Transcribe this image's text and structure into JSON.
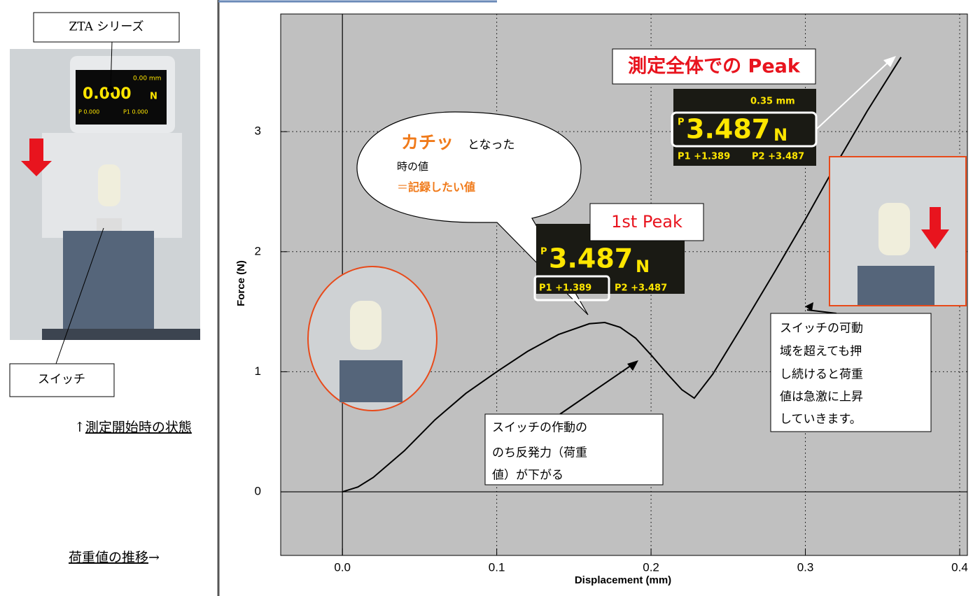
{
  "chart_data": {
    "type": "line",
    "xlabel": "Displacement (mm)",
    "ylabel": "Force (N)",
    "x": [
      0,
      0.01,
      0.02,
      0.04,
      0.06,
      0.08,
      0.1,
      0.12,
      0.14,
      0.16,
      0.17,
      0.18,
      0.19,
      0.2,
      0.21,
      0.22,
      0.228,
      0.24,
      0.26,
      0.28,
      0.3,
      0.32,
      0.34,
      0.362
    ],
    "series": [
      {
        "color": "#000000",
        "values": [
          0,
          0.04,
          0.12,
          0.34,
          0.6,
          0.82,
          1.0,
          1.17,
          1.31,
          1.4,
          1.41,
          1.37,
          1.28,
          1.14,
          0.99,
          0.85,
          0.78,
          0.98,
          1.4,
          1.83,
          2.27,
          2.73,
          3.17,
          3.62
        ]
      }
    ],
    "xlim": [
      -0.04,
      0.405
    ],
    "ylim": [
      -0.53,
      3.98
    ],
    "xticks": [
      {
        "value": 0,
        "label": "0.0"
      },
      0.1,
      0.2,
      0.3,
      {
        "value": 0.4,
        "label": "0.4"
      }
    ],
    "yticks": [
      0,
      1,
      2,
      3
    ],
    "grid": true,
    "annotations": {
      "peak_all": "測定全体での Peak",
      "first_peak": "1st Peak",
      "bubble": [
        "カチッ",
        "となった",
        "時の値",
        "＝",
        "記録したい値"
      ],
      "note_drop": [
        "スイッチの作動の",
        "のち反発力（荷重",
        "値）が下がる"
      ],
      "note_rise": [
        "スイッチの可動",
        "域を超えても押",
        "し続けると荷重",
        "値は急激に上昇",
        "していきます。"
      ],
      "readout_top": [
        "0.35 mm",
        "P",
        "3.487",
        "N",
        "P1 +1.389",
        "P2 +3.487"
      ],
      "readout_mid": [
        "P",
        "3.487",
        "N",
        "P1 +1.389",
        "P2 +3.487"
      ]
    }
  },
  "left_panel": {
    "model_label": "ZTA シリーズ",
    "device_display": [
      "0.00 mm",
      "0.000",
      "N",
      "P 0.000",
      "P1 0.000"
    ],
    "switch_label": "スイッチ",
    "caption_start": [
      "↑",
      "測定開始時の状態"
    ],
    "caption_trend": [
      "荷重値の推移",
      "→"
    ]
  }
}
